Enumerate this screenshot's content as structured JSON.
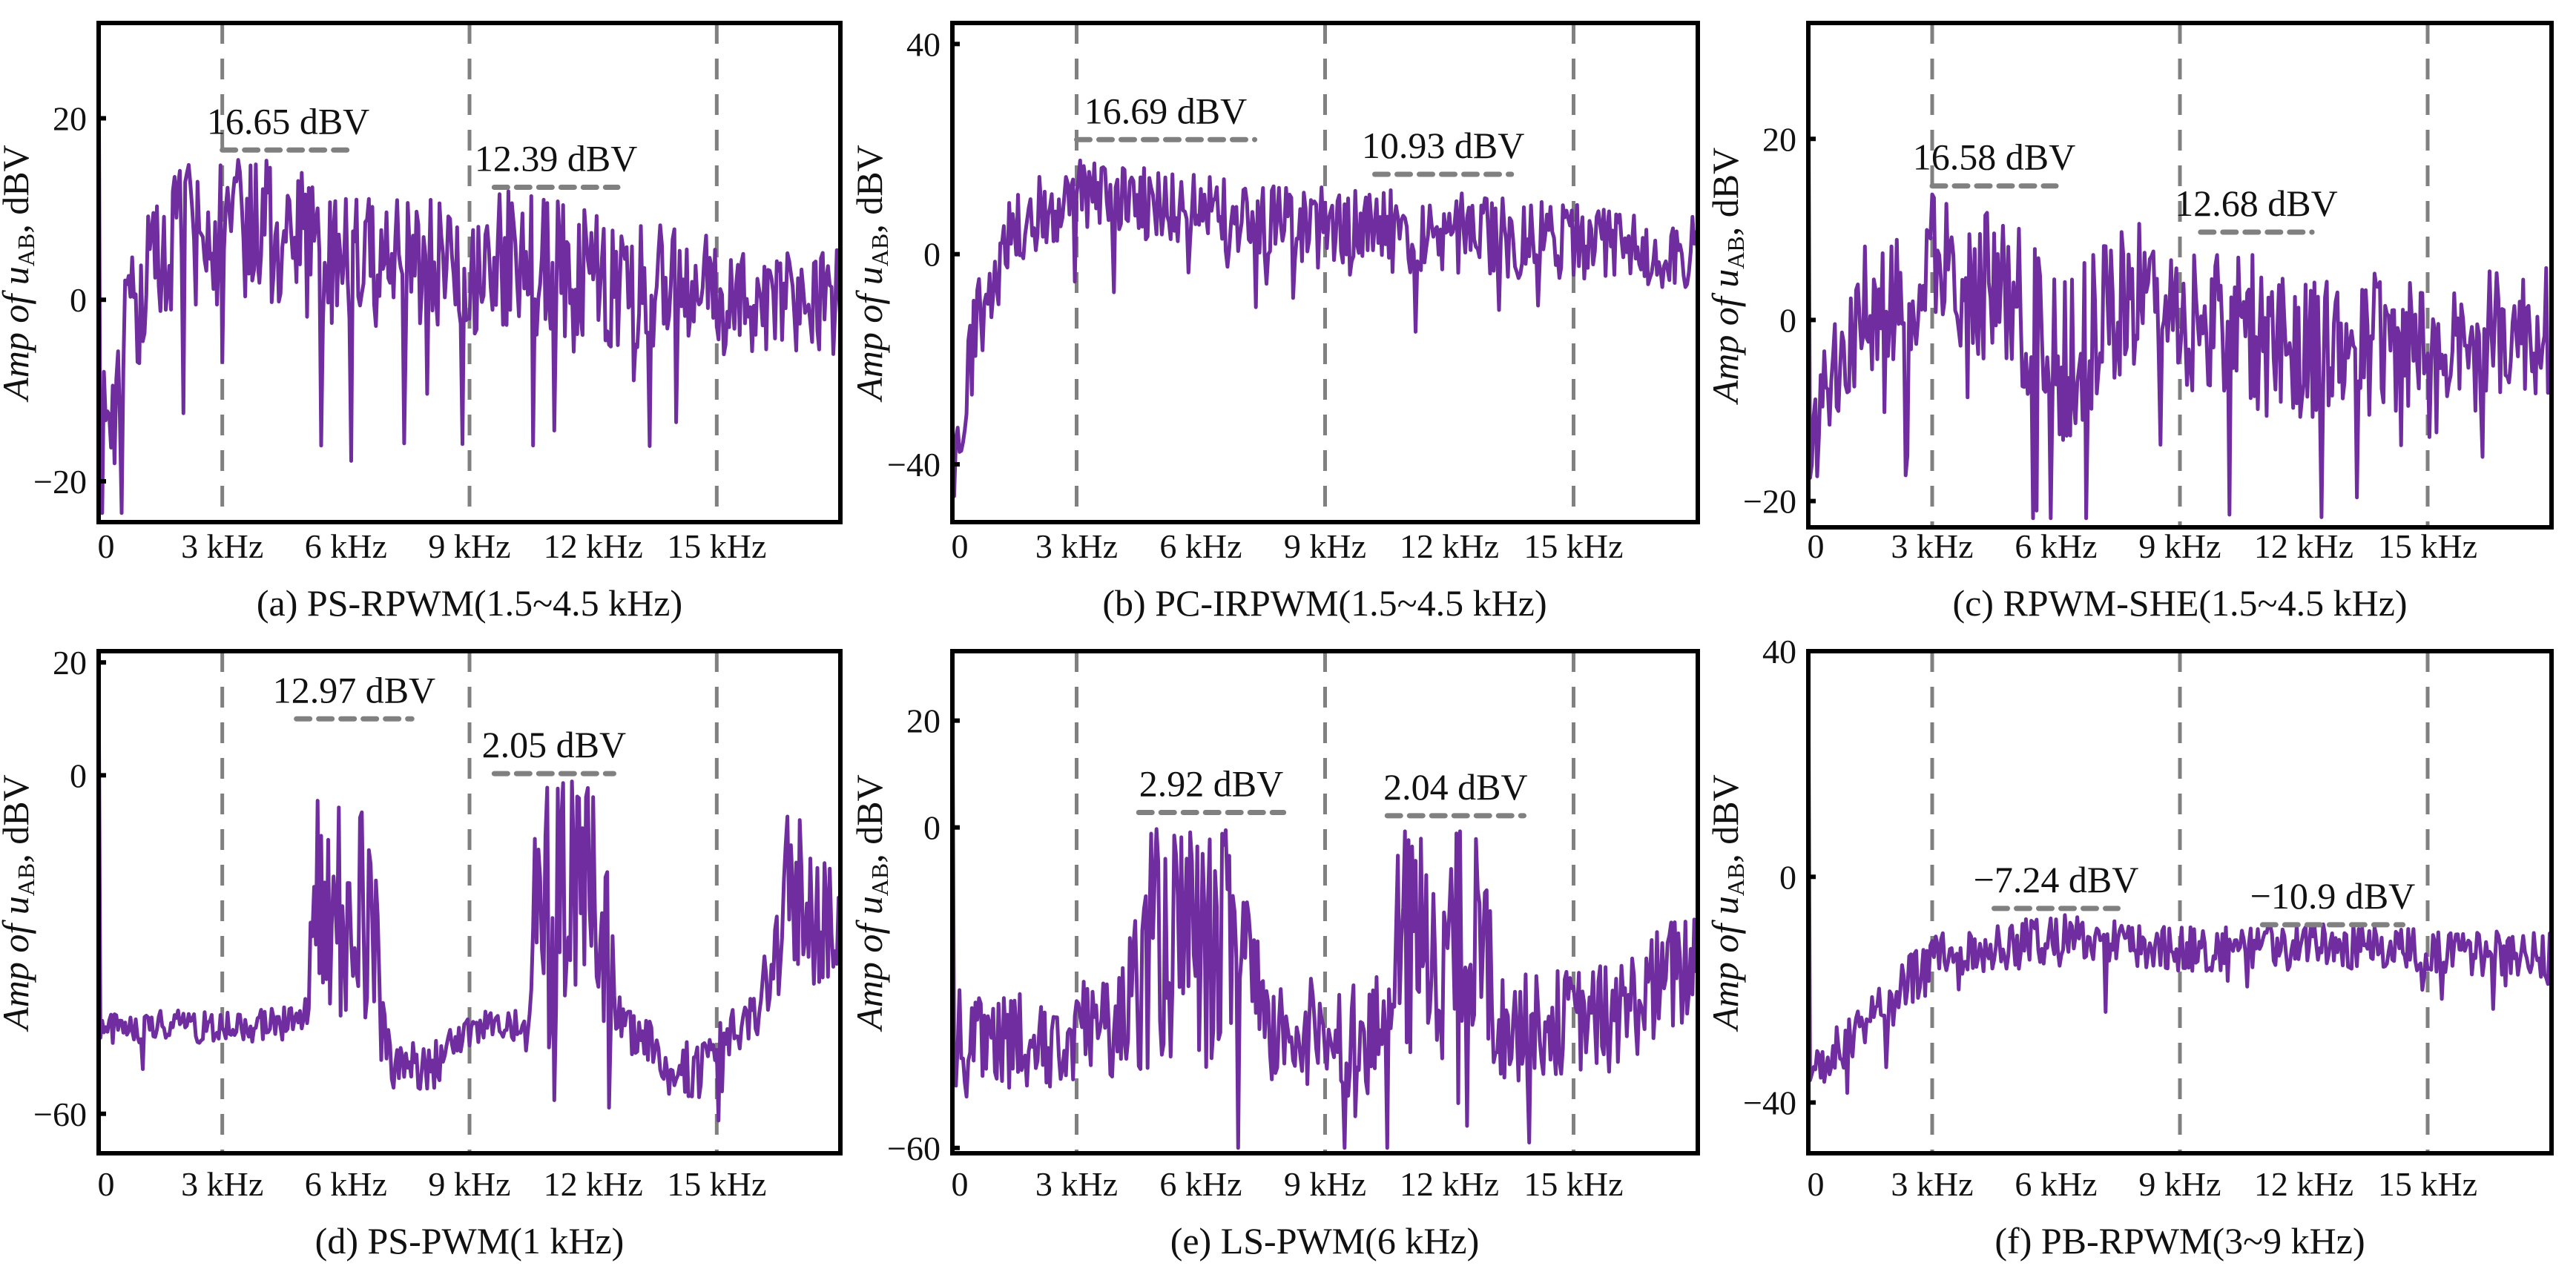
{
  "colors": {
    "signal": "#6F2DA0",
    "frame": "#000000",
    "grid": "#808080"
  },
  "chart_data": [
    {
      "type": "line",
      "caption": "(a) PS-RPWM(1.5~4.5 kHz)",
      "ylabel": "Amp of u",
      "ylabel_sub": "AB",
      "ylabel_unit": ", dBV",
      "xlim": [
        0,
        18
      ],
      "ylim": [
        -24.5,
        30.5
      ],
      "xticks": [
        0,
        3,
        6,
        9,
        12,
        15
      ],
      "xtick_labels": [
        "0",
        "3 kHz",
        "6 kHz",
        "9 kHz",
        "12 kHz",
        "15 kHz"
      ],
      "yticks": [
        20,
        0,
        -20
      ],
      "ytick_labels": [
        "20",
        "0",
        "−20"
      ],
      "vlines_khz": [
        3,
        9,
        15
      ],
      "annotations": [
        {
          "label": "16.65 dBV",
          "level": 16.5,
          "x": [
            3,
            6.2
          ]
        },
        {
          "label": "12.39 dBV",
          "level": 12.4,
          "x": [
            9.6,
            12.6
          ]
        }
      ],
      "envelope": [
        [
          0,
          -18,
          8
        ],
        [
          0.5,
          -8,
          8
        ],
        [
          1,
          0,
          8
        ],
        [
          2,
          7,
          8
        ],
        [
          4,
          8,
          8
        ],
        [
          6,
          4,
          8
        ],
        [
          10,
          4,
          8
        ],
        [
          14,
          1,
          7
        ],
        [
          18,
          0,
          6
        ]
      ],
      "start": 30
    },
    {
      "type": "line",
      "caption": "(b)  PC-IRPWM(1.5~4.5 kHz)",
      "ylabel": "Amp of u",
      "ylabel_sub": "AB",
      "ylabel_unit": ", dBV",
      "xlim": [
        0,
        18
      ],
      "ylim": [
        -51,
        44
      ],
      "xticks": [
        0,
        3,
        6,
        9,
        12,
        15
      ],
      "xtick_labels": [
        "0",
        "3 kHz",
        "6 kHz",
        "9 kHz",
        "12 kHz",
        "15 kHz"
      ],
      "yticks": [
        40,
        0,
        -40
      ],
      "ytick_labels": [
        "40",
        "0",
        "−40"
      ],
      "vlines_khz": [
        3,
        9,
        15
      ],
      "annotations": [
        {
          "label": "16.69 dBV",
          "level": 21.8,
          "x": [
            3,
            7.3
          ]
        },
        {
          "label": "10.93 dBV",
          "level": 15.2,
          "x": [
            10.2,
            13.5
          ]
        }
      ],
      "envelope": [
        [
          0,
          -45,
          5
        ],
        [
          0.5,
          -15,
          8
        ],
        [
          1.5,
          5,
          8
        ],
        [
          3,
          12,
          7
        ],
        [
          6,
          8,
          7
        ],
        [
          9,
          5,
          8
        ],
        [
          12,
          4,
          8
        ],
        [
          18,
          0,
          7
        ]
      ],
      "start": -40
    },
    {
      "type": "line",
      "caption": "(c)  RPWM-SHE(1.5~4.5 kHz)",
      "ylabel": "Amp of u",
      "ylabel_sub": "AB",
      "ylabel_unit": ", dBV",
      "xlim": [
        0,
        18
      ],
      "ylim": [
        -22.9,
        32.8
      ],
      "xticks": [
        0,
        3,
        6,
        9,
        12,
        15
      ],
      "xtick_labels": [
        "0",
        "3 kHz",
        "6 kHz",
        "9 kHz",
        "12 kHz",
        "15 kHz"
      ],
      "yticks": [
        20,
        0,
        -20
      ],
      "ytick_labels": [
        "20",
        "0",
        "−20"
      ],
      "vlines_khz": [
        3,
        9,
        15
      ],
      "annotations": [
        {
          "label": "16.58 dBV",
          "level": 14.8,
          "x": [
            3,
            6
          ]
        },
        {
          "label": "12.68 dBV",
          "level": 9.7,
          "x": [
            9.5,
            12.2
          ]
        }
      ],
      "envelope": [
        [
          0,
          -15,
          5
        ],
        [
          1,
          0,
          8
        ],
        [
          3,
          6,
          8
        ],
        [
          5,
          2,
          9
        ],
        [
          6,
          -5,
          10
        ],
        [
          8,
          3,
          8
        ],
        [
          11,
          -2,
          9
        ],
        [
          13,
          -3,
          8
        ],
        [
          18,
          -1,
          7
        ]
      ],
      "start": 30
    },
    {
      "type": "line",
      "caption": "(d) PS-PWM(1 kHz)",
      "ylabel": "Amp of u",
      "ylabel_sub": "AB",
      "ylabel_unit": ", dBV",
      "xlim": [
        0,
        18
      ],
      "ylim": [
        -67,
        22
      ],
      "xticks": [
        0,
        3,
        6,
        9,
        12,
        15
      ],
      "xtick_labels": [
        "0",
        "3 kHz",
        "6 kHz",
        "9 kHz",
        "12 kHz",
        "15 kHz"
      ],
      "yticks": [
        20,
        0,
        -60
      ],
      "ytick_labels": [
        "20",
        "0",
        "−60"
      ],
      "vlines_khz": [
        3,
        9,
        15
      ],
      "annotations": [
        {
          "label": "12.97 dBV",
          "level": 10,
          "x": [
            4.8,
            7.6
          ]
        },
        {
          "label": "2.05 dBV",
          "level": 0.3,
          "x": [
            9.6,
            12.5
          ]
        }
      ],
      "envelope": [
        [
          0,
          -45,
          3
        ],
        [
          5,
          -44,
          3
        ],
        [
          5.3,
          -22,
          22
        ],
        [
          6.6,
          -22,
          22
        ],
        [
          7,
          -50,
          5
        ],
        [
          8,
          -53,
          5
        ],
        [
          9,
          -45,
          3
        ],
        [
          10.4,
          -44,
          3
        ],
        [
          10.6,
          -22,
          22
        ],
        [
          12.4,
          -22,
          22
        ],
        [
          12.7,
          -45,
          4
        ],
        [
          14.5,
          -53,
          5
        ],
        [
          16,
          -42,
          5
        ],
        [
          16.7,
          -22,
          16
        ],
        [
          18,
          -25,
          12
        ]
      ],
      "start": 20
    },
    {
      "type": "line",
      "caption": "(e) LS-PWM(6 kHz)",
      "ylabel": "Amp of u",
      "ylabel_sub": "AB",
      "ylabel_unit": ", dBV",
      "xlim": [
        0,
        18
      ],
      "ylim": [
        -61,
        33
      ],
      "xticks": [
        0,
        3,
        6,
        9,
        12,
        15
      ],
      "xtick_labels": [
        "0",
        "3 kHz",
        "6 kHz",
        "9 kHz",
        "12 kHz",
        "15 kHz"
      ],
      "yticks": [
        20,
        0,
        -60
      ],
      "ytick_labels": [
        "20",
        "0",
        "−60"
      ],
      "vlines_khz": [
        3,
        9,
        15
      ],
      "annotations": [
        {
          "label": "2.92 dBV",
          "level": 2.8,
          "x": [
            4.5,
            8
          ]
        },
        {
          "label": "2.04 dBV",
          "level": 2.2,
          "x": [
            10.5,
            13.8
          ]
        }
      ],
      "envelope": [
        [
          0,
          -40,
          10
        ],
        [
          4,
          -38,
          10
        ],
        [
          4.8,
          -22,
          22
        ],
        [
          7,
          -22,
          22
        ],
        [
          7.5,
          -38,
          10
        ],
        [
          10.5,
          -38,
          10
        ],
        [
          10.8,
          -22,
          22
        ],
        [
          12.8,
          -22,
          22
        ],
        [
          13.2,
          -38,
          10
        ],
        [
          16,
          -35,
          10
        ],
        [
          18,
          -25,
          12
        ]
      ],
      "start": 30
    },
    {
      "type": "line",
      "caption": "(f) PB-RPWM(3~9 kHz)",
      "ylabel": "Amp of u",
      "ylabel_sub": "AB",
      "ylabel_unit": ", dBV",
      "xlim": [
        0,
        18
      ],
      "ylim": [
        -49,
        40
      ],
      "xticks": [
        0,
        3,
        6,
        9,
        12,
        15
      ],
      "xtick_labels": [
        "0",
        "3 kHz",
        "6 kHz",
        "9 kHz",
        "12 kHz",
        "15 kHz"
      ],
      "yticks": [
        40,
        0,
        -40
      ],
      "ytick_labels": [
        "40",
        "0",
        "−40"
      ],
      "vlines_khz": [
        3,
        9,
        15
      ],
      "annotations": [
        {
          "label": "−7.24 dBV",
          "level": -5.6,
          "x": [
            4.5,
            7.5
          ]
        },
        {
          "label": "−10.9 dBV",
          "level": -8.5,
          "x": [
            11,
            14.4
          ]
        }
      ],
      "envelope": [
        [
          0,
          -35,
          4
        ],
        [
          2,
          -22,
          5
        ],
        [
          3,
          -14,
          4
        ],
        [
          6,
          -11,
          5
        ],
        [
          9,
          -13,
          4
        ],
        [
          12,
          -12,
          4
        ],
        [
          18,
          -14,
          4
        ]
      ],
      "start": 40
    }
  ]
}
